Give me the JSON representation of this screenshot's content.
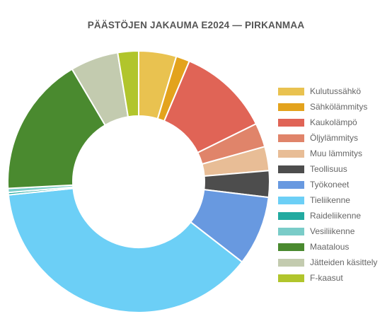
{
  "chart_data": {
    "type": "pie",
    "donut": true,
    "title": "PÄÄSTÖJEN JAKAUMA E2024 — PIRKANMAA",
    "legend_position": "right",
    "categories": [
      "Kulutussähkö",
      "Sähkölämmitys",
      "Kaukolämpö",
      "Öljylämmitys",
      "Muu lämmitys",
      "Teollisuus",
      "Työkoneet",
      "Tieliikenne",
      "Raideliikenne",
      "Vesiliikenne",
      "Maatalous",
      "Jätteiden käsittely",
      "F-kaasut"
    ],
    "values": [
      4.7,
      1.7,
      11.5,
      3.0,
      3.0,
      3.3,
      8.7,
      38.3,
      0.3,
      0.5,
      17.5,
      6.0,
      2.6
    ],
    "colors": [
      "#e9c250",
      "#e3a31d",
      "#e06456",
      "#e0846a",
      "#e8bd96",
      "#4d4d4d",
      "#6899e0",
      "#6ccff6",
      "#22aaa0",
      "#7accc8",
      "#4a8a2f",
      "#c3cbaf",
      "#b1c52c"
    ]
  }
}
